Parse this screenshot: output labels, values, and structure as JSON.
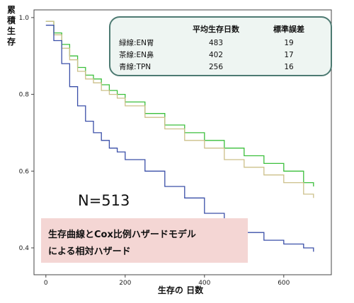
{
  "chart_data": {
    "type": "line",
    "xlabel": "生存の 日数",
    "ylabel": "累積生存",
    "xlim": [
      -30,
      720
    ],
    "ylim": [
      0.33,
      1.02
    ],
    "x_ticks": [
      "0",
      "200",
      "400",
      "600"
    ],
    "y_ticks": [
      "0.4",
      "0.6",
      "0.8",
      "1.0"
    ],
    "grid": false,
    "legend_position": "top-right",
    "legend_headers": [
      "",
      "平均生存日数",
      "標準誤差"
    ],
    "series": [
      {
        "name": "緑線:EN胃",
        "color": "#3bbf3b",
        "mean_survival_days": "483",
        "std_error": "19",
        "x": [
          0,
          20,
          40,
          60,
          80,
          100,
          120,
          140,
          160,
          180,
          200,
          250,
          300,
          350,
          400,
          450,
          500,
          550,
          600,
          650,
          675
        ],
        "y": [
          0.99,
          0.96,
          0.93,
          0.9,
          0.87,
          0.85,
          0.84,
          0.825,
          0.81,
          0.8,
          0.78,
          0.75,
          0.72,
          0.7,
          0.68,
          0.66,
          0.64,
          0.62,
          0.6,
          0.57,
          0.56
        ]
      },
      {
        "name": "茶線:EN鼻",
        "color": "#ccc08a",
        "mean_survival_days": "402",
        "std_error": "17",
        "x": [
          0,
          20,
          40,
          60,
          80,
          100,
          120,
          140,
          160,
          180,
          200,
          250,
          300,
          350,
          400,
          450,
          500,
          550,
          600,
          650,
          675
        ],
        "y": [
          0.99,
          0.955,
          0.92,
          0.89,
          0.86,
          0.84,
          0.83,
          0.81,
          0.8,
          0.79,
          0.77,
          0.74,
          0.71,
          0.68,
          0.66,
          0.63,
          0.61,
          0.59,
          0.57,
          0.54,
          0.53
        ]
      },
      {
        "name": "青線:TPN",
        "color": "#3a4fa8",
        "mean_survival_days": "256",
        "std_error": "16",
        "x": [
          0,
          20,
          40,
          60,
          80,
          100,
          120,
          140,
          160,
          180,
          200,
          250,
          300,
          350,
          400,
          450,
          500,
          550,
          600,
          650,
          675
        ],
        "y": [
          0.98,
          0.94,
          0.88,
          0.82,
          0.77,
          0.73,
          0.7,
          0.68,
          0.66,
          0.65,
          0.63,
          0.6,
          0.56,
          0.53,
          0.49,
          0.46,
          0.44,
          0.42,
          0.41,
          0.4,
          0.39
        ]
      }
    ],
    "annotations": {
      "n_label": "N=513",
      "note_line1": "生存曲線とCox比例ハザードモデル",
      "note_line2": "による相対ハザード"
    }
  }
}
